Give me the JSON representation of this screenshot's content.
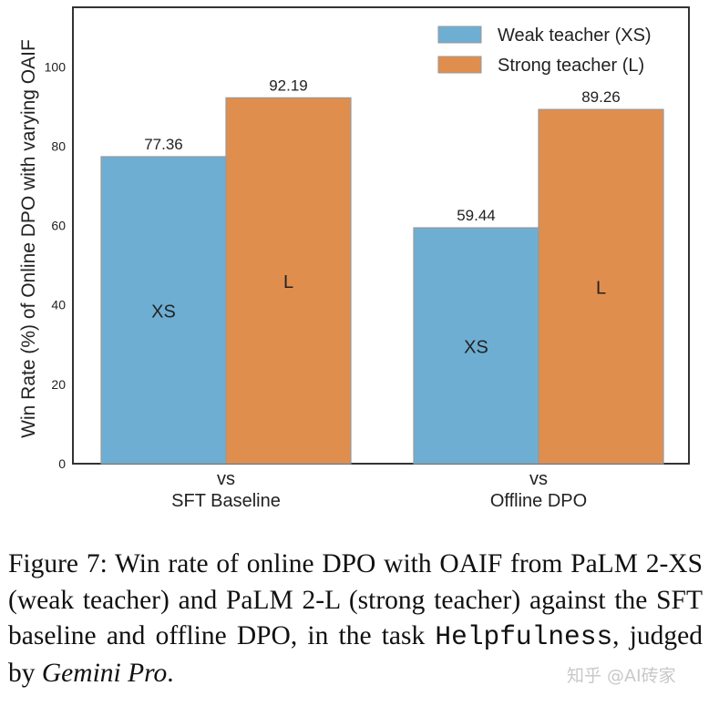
{
  "chart_data": {
    "type": "bar",
    "categories": [
      "vs\nSFT Baseline",
      "vs\nOffline DPO"
    ],
    "category_lines": [
      [
        "vs",
        "SFT Baseline"
      ],
      [
        "vs",
        "Offline DPO"
      ]
    ],
    "series": [
      {
        "name": "Weak teacher (XS)",
        "bar_label": "XS",
        "color": "#6eaed3",
        "values": [
          77.36,
          59.44
        ]
      },
      {
        "name": "Strong teacher (L)",
        "bar_label": "L",
        "color": "#e08e4e",
        "values": [
          92.19,
          89.26
        ]
      }
    ],
    "ylabel": "Win Rate (%) of Online DPO with varying OAIF",
    "ylim": [
      0,
      115
    ],
    "yticks": [
      0,
      20,
      40,
      60,
      80,
      100
    ],
    "grid": false,
    "legend": "top-right"
  },
  "caption": {
    "prefix": "Figure 7:  Win rate of online DPO with OAIF from PaLM 2-XS (weak teacher) and PaLM 2-L (strong teacher) against the SFT baseline and offline DPO, in the task ",
    "task": "Helpfulness",
    "middle": ", judged by ",
    "judge": "Gemini Pro",
    "suffix": "."
  },
  "watermark": "知乎 @AI砖家"
}
